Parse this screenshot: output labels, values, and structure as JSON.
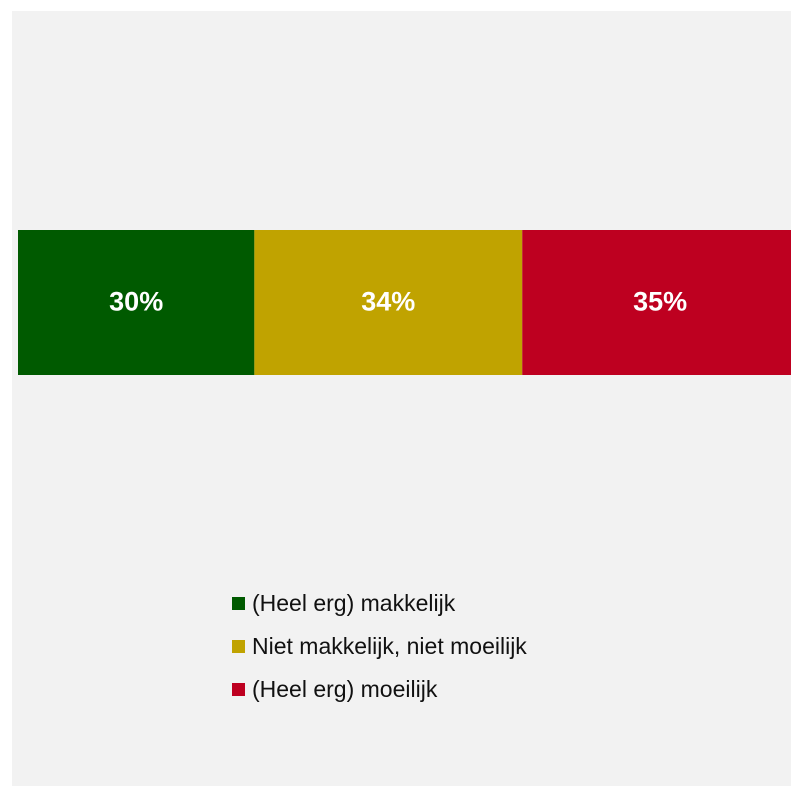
{
  "chart_data": {
    "type": "bar",
    "orientation": "horizontal-stacked-100",
    "title": "",
    "xlabel": "",
    "ylabel": "",
    "grid": false,
    "legend_position": "bottom",
    "series": [
      {
        "name": "(Heel erg) makkelijk",
        "value": 30,
        "label": "30%",
        "color": "#005a00"
      },
      {
        "name": "Niet makkelijk, niet moeilijk",
        "value": 34,
        "label": "34%",
        "color": "#c0a300"
      },
      {
        "name": "(Heel erg) moeilijk",
        "value": 35,
        "label": "35%",
        "color": "#be0020"
      }
    ],
    "label_color": "#ffffff"
  }
}
